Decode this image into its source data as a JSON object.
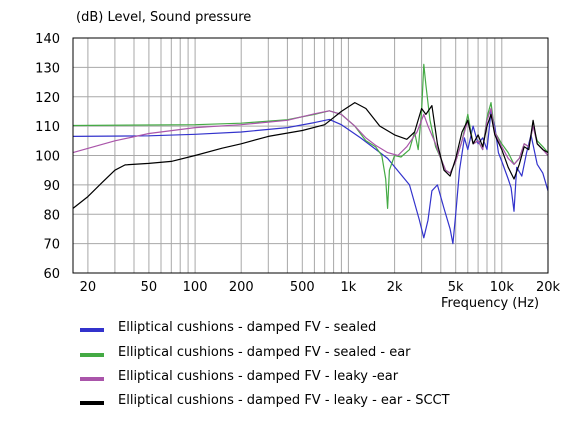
{
  "chart_data": {
    "type": "line",
    "title": "(dB)  Level, Sound pressure",
    "xlabel": "Frequency  (Hz)",
    "ylabel": "(dB)",
    "xscale": "log",
    "xlim": [
      16,
      20000
    ],
    "ylim": [
      60,
      140
    ],
    "grid": true,
    "legend_placement": "bottom",
    "x_ticks": [
      {
        "value": 20,
        "label": "20"
      },
      {
        "value": 50,
        "label": "50"
      },
      {
        "value": 100,
        "label": "100"
      },
      {
        "value": 200,
        "label": "200"
      },
      {
        "value": 500,
        "label": "500"
      },
      {
        "value": 1000,
        "label": "1k"
      },
      {
        "value": 2000,
        "label": "2k"
      },
      {
        "value": 5000,
        "label": "5k"
      },
      {
        "value": 10000,
        "label": "10k"
      },
      {
        "value": 20000,
        "label": "20k"
      }
    ],
    "y_ticks": [
      {
        "value": 140,
        "label": "140"
      },
      {
        "value": 130,
        "label": "130"
      },
      {
        "value": 120,
        "label": "120"
      },
      {
        "value": 110,
        "label": "110"
      },
      {
        "value": 100,
        "label": "100"
      },
      {
        "value": 90,
        "label": "90"
      },
      {
        "value": 80,
        "label": "80"
      },
      {
        "value": 70,
        "label": "70"
      },
      {
        "value": 60,
        "label": "60"
      }
    ],
    "series": [
      {
        "name": "Elliptical cushions - damped FV - sealed",
        "color": "#3333cc",
        "points": [
          [
            16,
            106.5
          ],
          [
            50,
            106.7
          ],
          [
            100,
            107.2
          ],
          [
            200,
            108
          ],
          [
            400,
            109.5
          ],
          [
            600,
            111.2
          ],
          [
            750,
            112.3
          ],
          [
            900,
            110.5
          ],
          [
            1200,
            106
          ],
          [
            1800,
            99
          ],
          [
            2500,
            90
          ],
          [
            2900,
            78
          ],
          [
            3100,
            72
          ],
          [
            3300,
            78
          ],
          [
            3500,
            88
          ],
          [
            3800,
            90
          ],
          [
            4200,
            82
          ],
          [
            4600,
            75
          ],
          [
            4800,
            70
          ],
          [
            5000,
            80
          ],
          [
            5300,
            95
          ],
          [
            5700,
            106
          ],
          [
            6000,
            102
          ],
          [
            6500,
            110
          ],
          [
            7000,
            104
          ],
          [
            7500,
            106
          ],
          [
            8000,
            102
          ],
          [
            8500,
            115
          ],
          [
            9000,
            110
          ],
          [
            9500,
            101
          ],
          [
            10000,
            98
          ],
          [
            11000,
            92
          ],
          [
            11500,
            89
          ],
          [
            12000,
            81
          ],
          [
            12500,
            96
          ],
          [
            13500,
            93
          ],
          [
            14500,
            101
          ],
          [
            15500,
            107
          ],
          [
            17000,
            97
          ],
          [
            18500,
            94
          ],
          [
            20000,
            88
          ]
        ]
      },
      {
        "name": "Elliptical cushions - damped FV - sealed - ear",
        "color": "#44aa44",
        "points": [
          [
            16,
            110.2
          ],
          [
            100,
            110.5
          ],
          [
            200,
            111
          ],
          [
            400,
            112.2
          ],
          [
            600,
            114
          ],
          [
            750,
            115.2
          ],
          [
            900,
            114
          ],
          [
            1100,
            110
          ],
          [
            1300,
            105
          ],
          [
            1500,
            103
          ],
          [
            1650,
            100
          ],
          [
            1750,
            92
          ],
          [
            1800,
            82
          ],
          [
            1850,
            95
          ],
          [
            2000,
            100
          ],
          [
            2200,
            99.5
          ],
          [
            2500,
            102
          ],
          [
            2700,
            108
          ],
          [
            2850,
            102
          ],
          [
            3000,
            115
          ],
          [
            3100,
            131
          ],
          [
            3200,
            124
          ],
          [
            3400,
            112
          ],
          [
            3700,
            103
          ],
          [
            4000,
            99
          ],
          [
            4300,
            95
          ],
          [
            4600,
            94
          ],
          [
            5000,
            98
          ],
          [
            5500,
            105
          ],
          [
            6000,
            114
          ],
          [
            6500,
            104
          ],
          [
            7000,
            105
          ],
          [
            7500,
            102
          ],
          [
            8000,
            113
          ],
          [
            8500,
            118
          ],
          [
            9000,
            108
          ],
          [
            10000,
            104
          ],
          [
            11000,
            101
          ],
          [
            12000,
            97
          ],
          [
            13000,
            99
          ],
          [
            14000,
            104
          ],
          [
            15000,
            103
          ],
          [
            16000,
            110
          ],
          [
            17000,
            105
          ],
          [
            18500,
            103
          ],
          [
            20000,
            101
          ]
        ]
      },
      {
        "name": "Elliptical cushions - damped FV - leaky -ear",
        "color": "#aa55aa",
        "points": [
          [
            16,
            101
          ],
          [
            30,
            105
          ],
          [
            50,
            107.5
          ],
          [
            100,
            109.5
          ],
          [
            200,
            110.5
          ],
          [
            400,
            112
          ],
          [
            600,
            114.2
          ],
          [
            750,
            115.2
          ],
          [
            900,
            114
          ],
          [
            1100,
            110
          ],
          [
            1300,
            106
          ],
          [
            1500,
            103.5
          ],
          [
            1800,
            101
          ],
          [
            2100,
            100
          ],
          [
            2400,
            103
          ],
          [
            2800,
            108
          ],
          [
            3100,
            114
          ],
          [
            3300,
            110
          ],
          [
            3700,
            104
          ],
          [
            4000,
            99
          ],
          [
            4300,
            95
          ],
          [
            4600,
            94
          ],
          [
            5000,
            98
          ],
          [
            5500,
            105
          ],
          [
            6000,
            112
          ],
          [
            6500,
            104
          ],
          [
            7000,
            105
          ],
          [
            7500,
            102
          ],
          [
            8000,
            112
          ],
          [
            8500,
            116
          ],
          [
            9000,
            108
          ],
          [
            10000,
            103
          ],
          [
            11000,
            99
          ],
          [
            12000,
            97
          ],
          [
            13000,
            99
          ],
          [
            14000,
            104
          ],
          [
            15000,
            103
          ],
          [
            16000,
            110
          ],
          [
            17000,
            104
          ],
          [
            18500,
            102
          ],
          [
            20000,
            100
          ]
        ]
      },
      {
        "name": "Elliptical cushions - damped FV - leaky - ear - SCCT",
        "color": "#000000",
        "points": [
          [
            16,
            82
          ],
          [
            20,
            86
          ],
          [
            25,
            91
          ],
          [
            30,
            95
          ],
          [
            35,
            96.8
          ],
          [
            50,
            97.3
          ],
          [
            70,
            98
          ],
          [
            100,
            100
          ],
          [
            150,
            102.5
          ],
          [
            200,
            104
          ],
          [
            300,
            106.5
          ],
          [
            500,
            108.5
          ],
          [
            700,
            110.5
          ],
          [
            900,
            115
          ],
          [
            1100,
            118
          ],
          [
            1300,
            116
          ],
          [
            1600,
            110
          ],
          [
            2000,
            107
          ],
          [
            2400,
            105.5
          ],
          [
            2700,
            108
          ],
          [
            3000,
            116
          ],
          [
            3200,
            114
          ],
          [
            3500,
            117
          ],
          [
            3800,
            104
          ],
          [
            4200,
            95
          ],
          [
            4600,
            93
          ],
          [
            5000,
            99
          ],
          [
            5500,
            108
          ],
          [
            6000,
            112
          ],
          [
            6500,
            104
          ],
          [
            7000,
            107
          ],
          [
            7500,
            103
          ],
          [
            8000,
            110
          ],
          [
            8500,
            114
          ],
          [
            9000,
            107
          ],
          [
            10000,
            102
          ],
          [
            11000,
            96
          ],
          [
            12000,
            92
          ],
          [
            13000,
            97
          ],
          [
            14000,
            103
          ],
          [
            15000,
            102
          ],
          [
            16000,
            112
          ],
          [
            17000,
            104
          ],
          [
            18500,
            102
          ],
          [
            20000,
            101
          ]
        ]
      }
    ]
  },
  "legend": {
    "items": [
      {
        "label": "Elliptical cushions - damped FV - sealed",
        "color": "#3333cc"
      },
      {
        "label": "Elliptical cushions - damped FV - sealed - ear",
        "color": "#44aa44"
      },
      {
        "label": "Elliptical cushions - damped FV - leaky -ear",
        "color": "#aa55aa"
      },
      {
        "label": "Elliptical cushions - damped FV - leaky - ear - SCCT",
        "color": "#000000"
      }
    ]
  }
}
